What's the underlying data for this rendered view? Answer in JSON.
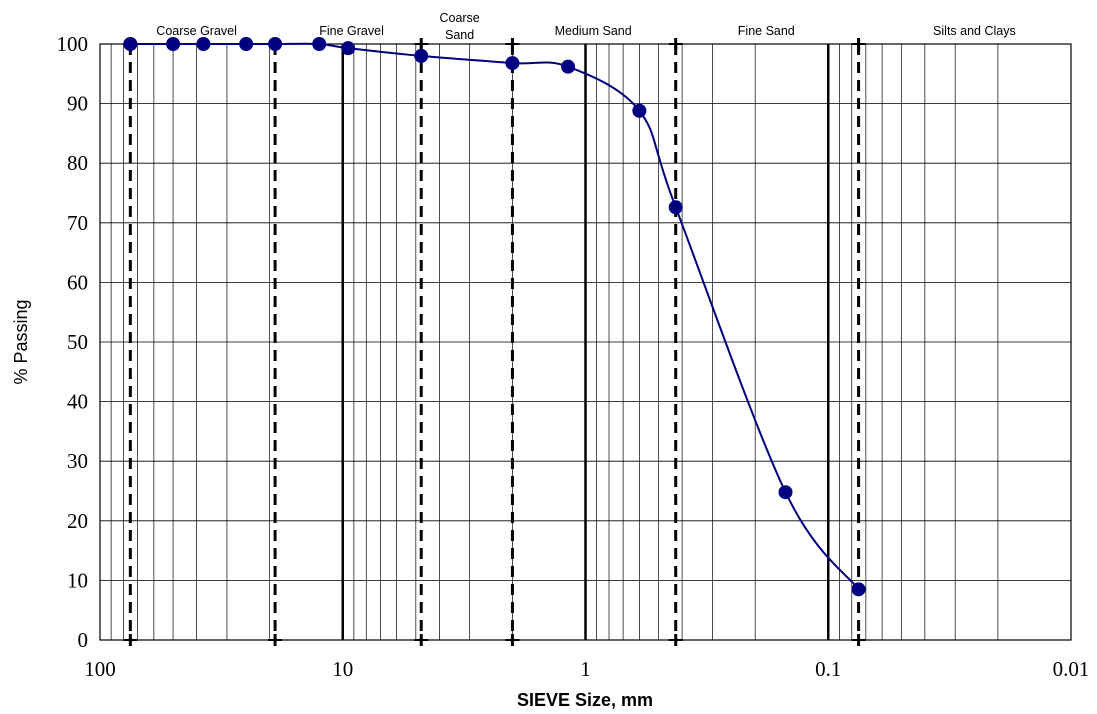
{
  "chart_data": {
    "type": "scatter",
    "title": "",
    "xlabel": "SIEVE Size, mm",
    "ylabel": "% Passing",
    "xscale": "log",
    "xreversed": true,
    "xlim": [
      100,
      0.01
    ],
    "ylim": [
      0,
      100
    ],
    "yticks": [
      0,
      10,
      20,
      30,
      40,
      50,
      60,
      70,
      80,
      90,
      100
    ],
    "xticks": [
      {
        "value": 100,
        "label": "100"
      },
      {
        "value": 10,
        "label": "10"
      },
      {
        "value": 1,
        "label": "1"
      },
      {
        "value": 0.1,
        "label": "0.1"
      },
      {
        "value": 0.01,
        "label": "0.01"
      }
    ],
    "grid": "log minor vertical lines, horizontal at every 10",
    "series": [
      {
        "color": "#000080",
        "smooth": true,
        "points": [
          {
            "x": 75,
            "y": 100
          },
          {
            "x": 50,
            "y": 100
          },
          {
            "x": 37.5,
            "y": 100
          },
          {
            "x": 25,
            "y": 100
          },
          {
            "x": 19,
            "y": 100
          },
          {
            "x": 12.5,
            "y": 100
          },
          {
            "x": 9.5,
            "y": 99.3
          },
          {
            "x": 4.75,
            "y": 98
          },
          {
            "x": 2,
            "y": 96.8
          },
          {
            "x": 1.18,
            "y": 96.2
          },
          {
            "x": 0.6,
            "y": 88.8
          },
          {
            "x": 0.425,
            "y": 72.6
          },
          {
            "x": 0.15,
            "y": 24.8
          },
          {
            "x": 0.075,
            "y": 8.5
          }
        ]
      }
    ],
    "boundaries": [
      {
        "x": 75,
        "style": "dashed"
      },
      {
        "x": 19,
        "style": "dashed"
      },
      {
        "x": 4.75,
        "style": "dashed"
      },
      {
        "x": 2,
        "style": "dashed"
      },
      {
        "x": 0.425,
        "style": "dashed"
      },
      {
        "x": 0.075,
        "style": "dashed"
      },
      {
        "x": 10,
        "style": "solid"
      },
      {
        "x": 1,
        "style": "solid"
      },
      {
        "x": 0.1,
        "style": "solid"
      }
    ],
    "zones": [
      {
        "lines": [
          "Coarse Gravel"
        ],
        "x": 40
      },
      {
        "lines": [
          "Fine Gravel"
        ],
        "x": 9.2
      },
      {
        "lines": [
          "Coarse",
          "Sand"
        ],
        "x": 3.3
      },
      {
        "lines": [
          "Medium Sand"
        ],
        "x": 0.93
      },
      {
        "lines": [
          "Fine Sand"
        ],
        "x": 0.18
      },
      {
        "lines": [
          "Silts and Clays"
        ],
        "x": 0.025
      }
    ]
  }
}
